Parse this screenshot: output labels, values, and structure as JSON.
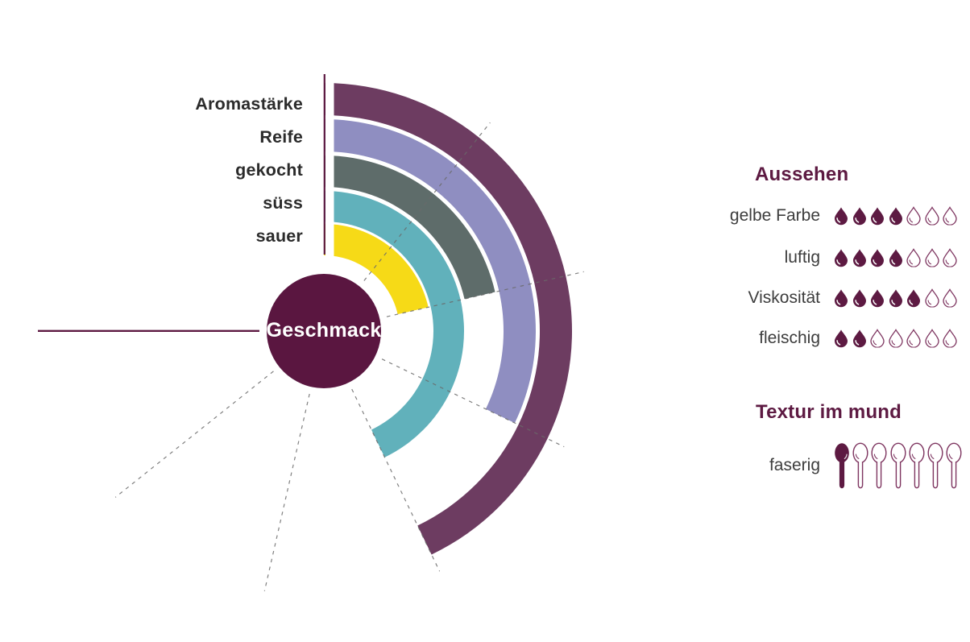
{
  "center_label": "Geschmack",
  "colors": {
    "accent": "#5D1A42",
    "center_circle": "#5A1640",
    "gridline": "#6A6A6A",
    "icon_outline": "#7E3560",
    "left_label_text": "#2B2B2B",
    "right_label_text": "#3D3D3D",
    "background": "#FFFFFF"
  },
  "chart_data": [
    {
      "type": "radial_bar",
      "title": "Geschmack",
      "scale": {
        "max_units": 7,
        "max_angle_deg": 270,
        "unit_angle_deg": 38.571,
        "gridlines_at_units": [
          1,
          2,
          3,
          4,
          5,
          6
        ],
        "start_angle_deg": 0,
        "direction": "clockwise-from-top"
      },
      "rings_outer_to_inner": [
        {
          "label": "Aromastärke",
          "value": 4,
          "color": "#6D3C61"
        },
        {
          "label": "Reife",
          "value": 3,
          "color": "#8F8EC1"
        },
        {
          "label": "gekocht",
          "value": 2,
          "color": "#5E6C6A"
        },
        {
          "label": "süss",
          "value": 4,
          "color": "#61B1BB"
        },
        {
          "label": "sauer",
          "value": 2,
          "color": "#F6DA17"
        }
      ]
    },
    {
      "type": "pictogram",
      "title": "Aussehen",
      "icon": "drop-icon",
      "scale_max": 7,
      "rows": [
        {
          "label": "gelbe Farbe",
          "value": 4
        },
        {
          "label": "luftig",
          "value": 4
        },
        {
          "label": "Viskosität",
          "value": 5
        },
        {
          "label": "fleischig",
          "value": 2
        }
      ]
    },
    {
      "type": "pictogram",
      "title": "Textur im mund",
      "icon": "spoon-icon",
      "scale_max": 7,
      "rows": [
        {
          "label": "faserig",
          "value": 1
        }
      ]
    }
  ]
}
